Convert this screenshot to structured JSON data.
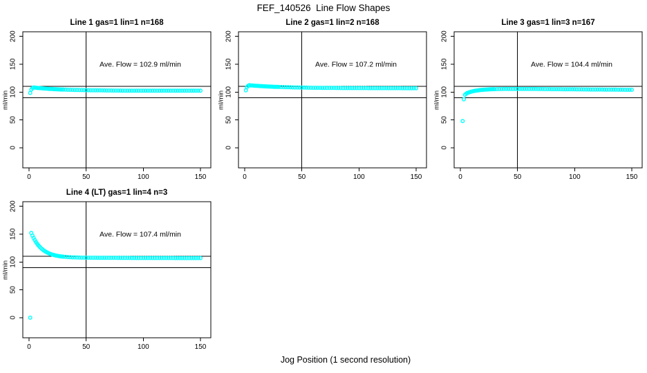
{
  "figure": {
    "main_title": "FEF_140526  Line Flow Shapes",
    "x_axis_label": "Jog Position (1 second resolution)",
    "point_color": "#00ffff",
    "axis_color": "#000000",
    "background_color": "#ffffff"
  },
  "chart_data": {
    "type": "scatter",
    "marker": "open-circle",
    "title": "FEF_140526  Line Flow Shapes",
    "xlabel": "Jog Position (1 second resolution)",
    "ylabel": "ml/min",
    "xlim": [
      0,
      150
    ],
    "ylim": [
      0,
      200
    ],
    "x_ticks": [
      0,
      50,
      100,
      150
    ],
    "y_ticks": [
      0,
      50,
      100,
      150,
      200
    ],
    "reference_hlines": [
      90,
      110
    ],
    "reference_vline": 50,
    "grid": false,
    "x": [
      1,
      2,
      3,
      4,
      5,
      6,
      7,
      8,
      9,
      10,
      11,
      12,
      13,
      14,
      15,
      16,
      17,
      18,
      19,
      20,
      21,
      22,
      23,
      24,
      25,
      26,
      27,
      28,
      29,
      30,
      32,
      34,
      36,
      38,
      40,
      42,
      44,
      46,
      48,
      50,
      52,
      54,
      56,
      58,
      60,
      62,
      64,
      66,
      68,
      70,
      72,
      74,
      76,
      78,
      80,
      82,
      84,
      86,
      88,
      90,
      92,
      94,
      96,
      98,
      100,
      102,
      104,
      106,
      108,
      110,
      112,
      114,
      116,
      118,
      120,
      122,
      124,
      126,
      128,
      130,
      132,
      134,
      136,
      138,
      140,
      142,
      144,
      146,
      148,
      150
    ],
    "panels": [
      {
        "title": "Line 1 gas=1 lin=1 n=168",
        "ave_flow": 102.9,
        "annotation": "Ave. Flow =  102.9  ml/min",
        "n": 168,
        "y": [
          98.5,
          104.5,
          107.0,
          108.2,
          108.0,
          107.8,
          107.5,
          107.3,
          107.1,
          107.0,
          106.8,
          106.6,
          106.4,
          106.3,
          106.1,
          106.0,
          105.8,
          105.7,
          105.6,
          105.5,
          105.3,
          105.2,
          105.1,
          105.0,
          104.9,
          104.8,
          104.7,
          104.6,
          104.5,
          104.5,
          104.3,
          104.1,
          104.0,
          103.9,
          103.8,
          103.7,
          103.6,
          103.5,
          103.4,
          103.3,
          103.3,
          103.2,
          103.1,
          103.1,
          103.0,
          103.0,
          102.9,
          102.9,
          102.8,
          102.8,
          102.8,
          102.7,
          102.7,
          102.7,
          102.7,
          102.6,
          102.6,
          102.6,
          102.6,
          102.6,
          102.5,
          102.5,
          102.5,
          102.5,
          102.5,
          102.5,
          102.5,
          102.4,
          102.4,
          102.4,
          102.4,
          102.4,
          102.4,
          102.4,
          102.4,
          102.4,
          102.4,
          102.4,
          102.4,
          102.4,
          102.4,
          102.4,
          102.4,
          102.4,
          102.4,
          102.4,
          102.4,
          102.4,
          102.4,
          102.4
        ]
      },
      {
        "title": "Line 2 gas=1 lin=2 n=168",
        "ave_flow": 107.2,
        "annotation": "Ave. Flow =  107.2  ml/min",
        "n": 168,
        "y": [
          103.0,
          109.0,
          111.2,
          112.2,
          112.0,
          111.9,
          111.7,
          111.5,
          111.4,
          111.2,
          111.1,
          111.0,
          110.8,
          110.7,
          110.6,
          110.5,
          110.3,
          110.2,
          110.1,
          110.0,
          109.9,
          109.8,
          109.7,
          109.6,
          109.5,
          109.4,
          109.3,
          109.3,
          109.2,
          109.1,
          109.0,
          108.9,
          108.7,
          108.6,
          108.5,
          108.4,
          108.3,
          108.2,
          108.1,
          108.0,
          108.0,
          107.9,
          107.8,
          107.8,
          107.7,
          107.7,
          107.6,
          107.6,
          107.5,
          107.5,
          107.4,
          107.4,
          107.4,
          107.4,
          107.3,
          107.3,
          107.3,
          107.2,
          107.2,
          107.2,
          107.2,
          107.2,
          107.1,
          107.1,
          107.1,
          107.1,
          107.1,
          107.1,
          107.0,
          107.0,
          107.0,
          107.0,
          107.0,
          107.0,
          107.0,
          107.0,
          107.0,
          107.0,
          107.0,
          107.0,
          107.0,
          107.0,
          107.0,
          106.9,
          106.9,
          106.9,
          106.9,
          106.9,
          106.9,
          106.9
        ]
      },
      {
        "title": "Line 3 gas=1 lin=3 n=167",
        "ave_flow": 104.4,
        "annotation": "Ave. Flow =  104.4  ml/min",
        "n": 167,
        "y": [
          null,
          48.0,
          87.0,
          95.0,
          97.0,
          98.3,
          99.0,
          99.7,
          100.3,
          100.9,
          101.4,
          101.9,
          102.3,
          102.6,
          102.9,
          103.2,
          103.5,
          103.7,
          103.9,
          104.1,
          104.3,
          104.4,
          104.6,
          104.7,
          104.8,
          104.9,
          105.0,
          105.1,
          105.1,
          105.2,
          105.3,
          105.4,
          105.4,
          105.5,
          105.5,
          105.6,
          105.6,
          105.6,
          105.6,
          105.7,
          105.7,
          105.7,
          105.6,
          105.6,
          105.6,
          105.5,
          105.5,
          105.5,
          105.4,
          105.4,
          105.4,
          105.3,
          105.3,
          105.3,
          105.2,
          105.2,
          105.2,
          105.1,
          105.1,
          105.0,
          105.0,
          105.0,
          104.9,
          104.9,
          104.9,
          104.8,
          104.8,
          104.8,
          104.7,
          104.7,
          104.7,
          104.6,
          104.6,
          104.6,
          104.5,
          104.5,
          104.5,
          104.4,
          104.4,
          104.4,
          104.3,
          104.3,
          104.3,
          104.2,
          104.2,
          104.2,
          104.1,
          104.1,
          104.1,
          104.0
        ]
      },
      {
        "title": "Line 4 (LT) gas=1 lin=4 n=3",
        "ave_flow": 107.4,
        "annotation": "Ave. Flow =  107.4  ml/min",
        "n": 3,
        "y": [
          0.0,
          152.0,
          147.3,
          143.1,
          139.4,
          136.0,
          133.0,
          130.3,
          127.9,
          125.8,
          123.9,
          122.1,
          120.6,
          119.2,
          118.0,
          116.9,
          115.9,
          115.0,
          114.2,
          113.5,
          112.9,
          112.3,
          111.8,
          111.4,
          111.0,
          110.6,
          110.3,
          110.0,
          109.7,
          109.5,
          109.1,
          108.8,
          108.5,
          108.3,
          108.2,
          108.0,
          107.9,
          107.8,
          107.8,
          107.7,
          107.7,
          107.6,
          107.6,
          107.6,
          107.5,
          107.5,
          107.5,
          107.5,
          107.4,
          107.4,
          107.4,
          107.4,
          107.4,
          107.3,
          107.3,
          107.3,
          107.3,
          107.3,
          107.3,
          107.2,
          107.2,
          107.2,
          107.2,
          107.2,
          107.2,
          107.2,
          107.1,
          107.1,
          107.1,
          107.1,
          107.1,
          107.1,
          107.1,
          107.1,
          107.1,
          107.1,
          107.1,
          107.1,
          107.0,
          107.0,
          107.0,
          107.0,
          107.0,
          107.0,
          107.0,
          107.0,
          107.0,
          107.0,
          107.0,
          107.0
        ]
      }
    ]
  }
}
